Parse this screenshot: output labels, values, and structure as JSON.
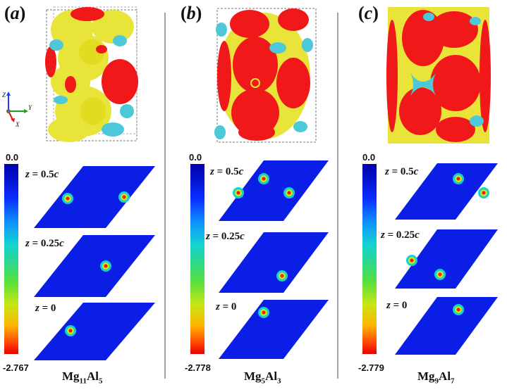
{
  "panels": [
    {
      "label_letter": "a",
      "compound_base1": "Mg",
      "compound_sub1": "11",
      "compound_base2": "Al",
      "compound_sub2": "5",
      "cbar_top": "0.0",
      "cbar_bottom": "-2.767",
      "slices": [
        {
          "z_label": "z = 0.5c"
        },
        {
          "z_label": "z = 0.25c"
        },
        {
          "z_label": "z = 0"
        }
      ]
    },
    {
      "label_letter": "b",
      "compound_base1": "Mg",
      "compound_sub1": "5",
      "compound_base2": "Al",
      "compound_sub2": "3",
      "cbar_top": "0.0",
      "cbar_bottom": "-2.778",
      "slices": [
        {
          "z_label": "z = 0.5c"
        },
        {
          "z_label": "z = 0.25c"
        },
        {
          "z_label": "z = 0"
        }
      ]
    },
    {
      "label_letter": "c",
      "compound_base1": "Mg",
      "compound_sub1": "9",
      "compound_base2": "Al",
      "compound_sub2": "7",
      "cbar_top": "0.0",
      "cbar_bottom": "-2.779",
      "slices": [
        {
          "z_label": "z = 0.5c"
        },
        {
          "z_label": "z = 0.25c"
        },
        {
          "z_label": "z = 0"
        }
      ]
    }
  ],
  "axes": {
    "z": "Z",
    "y": "Y",
    "x": "X"
  },
  "colors": {
    "isosurface_yellow": "#e8e43a",
    "isosurface_red": "#f01818",
    "isosurface_cyan": "#4cc8d8",
    "slice_blue": "#0a1ee6",
    "divider": "#9aa6a6"
  }
}
